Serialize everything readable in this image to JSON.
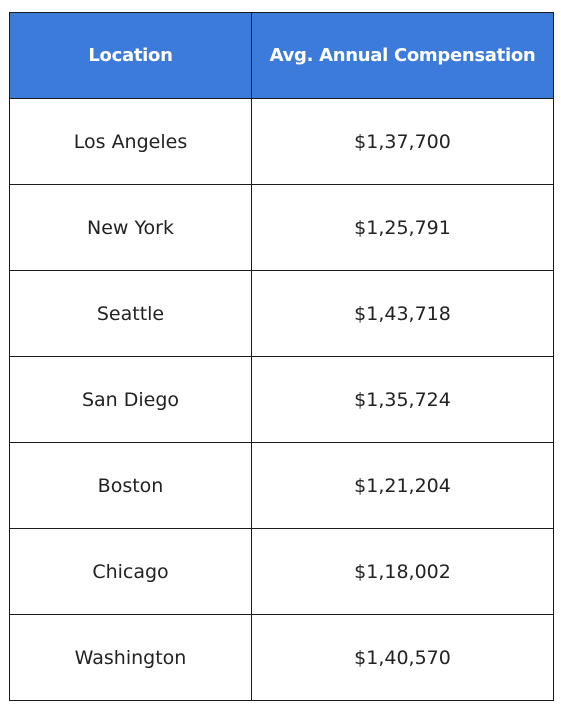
{
  "table": {
    "headers": [
      "Location",
      "Avg. Annual Compensation"
    ],
    "rows": [
      {
        "location": "Los Angeles",
        "compensation": "$1,37,700"
      },
      {
        "location": "New York",
        "compensation": "$1,25,791"
      },
      {
        "location": "Seattle",
        "compensation": "$1,43,718"
      },
      {
        "location": "San Diego",
        "compensation": "$1,35,724"
      },
      {
        "location": "Boston",
        "compensation": "$1,21,204"
      },
      {
        "location": "Chicago",
        "compensation": "$1,18,002"
      },
      {
        "location": "Washington",
        "compensation": "$1,40,570"
      }
    ]
  },
  "colors": {
    "header_background": "#3c7bd9",
    "header_text": "#ffffff",
    "border": "#1a1a1a",
    "cell_text": "#222222"
  }
}
